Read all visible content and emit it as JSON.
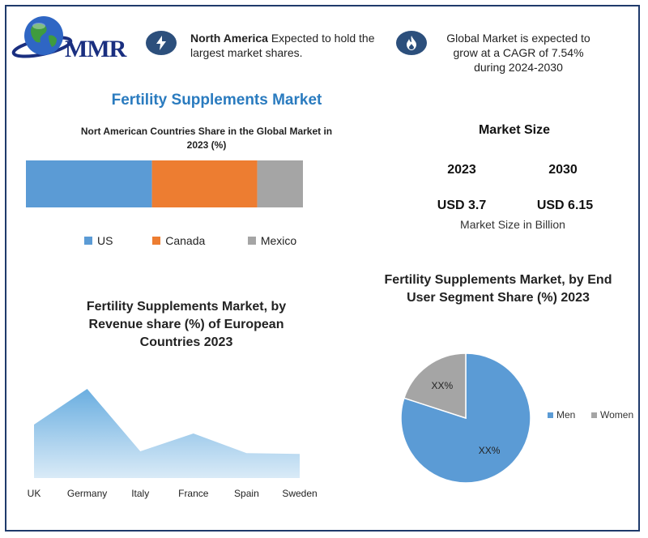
{
  "brand": {
    "logo_text": "MMR"
  },
  "notes": {
    "left": {
      "bold": "North America",
      "text": " Expected to hold the largest market shares."
    },
    "right": {
      "text": "Global Market is expected to grow at a CAGR of 7.54% during 2024-2030"
    }
  },
  "main_title": "Fertility Supplements Market",
  "market_size": {
    "title": "Market Size",
    "year1": "2023",
    "year2": "2030",
    "value1": "USD 3.7",
    "value2": "USD 6.15",
    "unit_label": "Market Size in Billion"
  },
  "colors": {
    "us": "#5b9bd5",
    "canada": "#ed7d31",
    "mexico": "#a5a5a5",
    "area": "#6aaee0",
    "men": "#5b9bd5",
    "women": "#a5a5a5",
    "accent": "#2a7bbf",
    "frame": "#1f3a6b"
  },
  "chart_data": [
    {
      "type": "bar",
      "title": "Nort American Countries Share in the Global Market in 2023  (%)",
      "stacked": true,
      "series": [
        {
          "name": "US",
          "values": [
            45.5
          ]
        },
        {
          "name": "Canada",
          "values": [
            38
          ]
        },
        {
          "name": "Mexico",
          "values": [
            16.5
          ]
        }
      ],
      "legend_position": "bottom"
    },
    {
      "type": "area",
      "title": "Fertility Supplements Market, by Revenue share (%) of European Countries 2023",
      "categories": [
        "UK",
        "Germany",
        "Italy",
        "France",
        "Spain",
        "Sweden"
      ],
      "values": [
        60,
        100,
        30,
        50,
        28,
        27
      ],
      "grid": false
    },
    {
      "type": "pie",
      "title": "Fertility Supplements Market, by End User Segment Share (%) 2023",
      "categories": [
        "Men",
        "Women"
      ],
      "values": [
        80,
        20
      ],
      "data_labels": [
        "XX%",
        "XX%"
      ],
      "legend_position": "right"
    }
  ]
}
